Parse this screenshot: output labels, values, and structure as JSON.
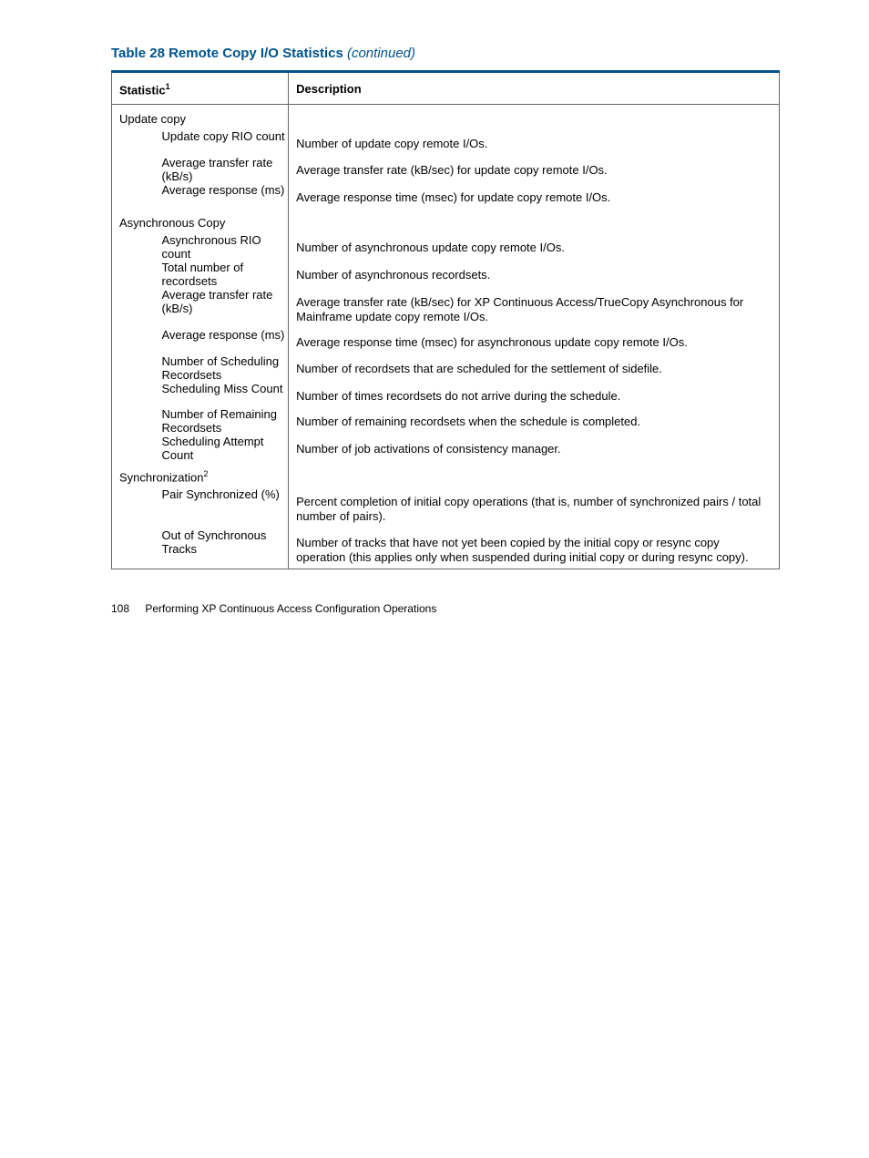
{
  "title": {
    "bold": "Table 28 Remote Copy I/O Statistics",
    "italic": "(continued)"
  },
  "colors": {
    "accent": "#00538b",
    "border": "#666666",
    "text": "#000000",
    "background": "#ffffff"
  },
  "columns": {
    "stat": "Statistic",
    "stat_sup": "1",
    "desc": "Description"
  },
  "sections": [
    {
      "heading": "Update copy",
      "heading_sup": "",
      "rows": [
        {
          "label": "Update copy RIO count",
          "narrow": false,
          "desc": "Number of update copy remote I/Os."
        },
        {
          "label": "Average transfer rate (kB/s)",
          "narrow": false,
          "desc": "Average transfer rate (kB/sec) for update copy remote I/Os."
        },
        {
          "label": "Average response (ms)",
          "narrow": false,
          "desc": "Average response time (msec) for update copy remote I/Os."
        }
      ]
    },
    {
      "heading": "Asynchronous Copy",
      "heading_sup": "",
      "rows": [
        {
          "label": "Asynchronous RIO count",
          "narrow": true,
          "desc": "Number of asynchronous update copy remote I/Os."
        },
        {
          "label": "Total number of recordsets",
          "narrow": false,
          "desc": "Number of asynchronous recordsets."
        },
        {
          "label": "Average transfer rate (kB/s)",
          "narrow": false,
          "desc": "Average transfer rate (kB/sec) for XP Continuous Access/TrueCopy Asynchronous for Mainframe update copy remote I/Os."
        },
        {
          "label": "Average response (ms)",
          "narrow": false,
          "desc": "Average response time (msec) for asynchronous update copy remote I/Os."
        },
        {
          "label": "Number of Scheduling Recordsets",
          "narrow": false,
          "desc": "Number of recordsets that are scheduled for the settlement of sidefile."
        },
        {
          "label": "Scheduling Miss Count",
          "narrow": false,
          "desc": "Number of times recordsets do not arrive during the schedule."
        },
        {
          "label": "Number of Remaining Recordsets",
          "narrow": false,
          "desc": "Number of remaining recordsets when the schedule is completed."
        },
        {
          "label": "Scheduling Attempt Count",
          "narrow": false,
          "desc": "Number of job activations of consistency manager."
        }
      ]
    },
    {
      "heading": "Synchronization",
      "heading_sup": "2",
      "rows": [
        {
          "label": "Pair Synchronized (%)",
          "narrow": true,
          "desc": "Percent completion of initial copy operations (that is, number of synchronized pairs / total number of pairs)."
        },
        {
          "label": "Out of Synchronous Tracks",
          "narrow": true,
          "desc": "Number of tracks that have not yet been copied by the initial copy or resync copy operation (this applies only when suspended during initial copy or during resync copy)."
        }
      ]
    }
  ],
  "footer": {
    "page": "108",
    "text": "Performing XP Continuous Access Configuration Operations"
  }
}
